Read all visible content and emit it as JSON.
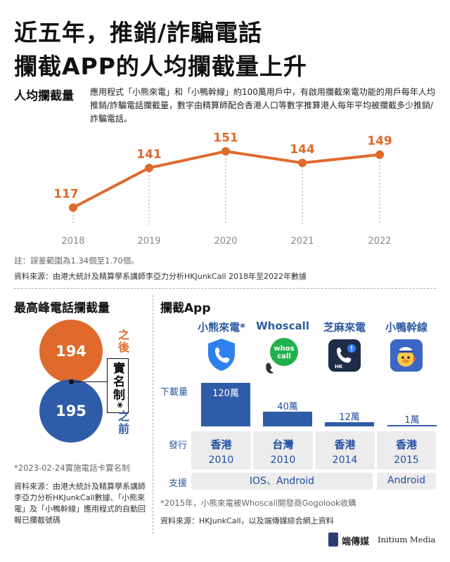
{
  "title": {
    "line1": "近五年，推銷/詐騙電話",
    "line2": "攔截APP的人均攔截量上升"
  },
  "per_capita": {
    "section_title": "人均攔截量",
    "description": "應用程式「小熊來電」和「小鴨幹線」約100萬用戶中，有啟用攔截來電功能的用戶每年人均推銷/詐騙電話攔截量，數字由精算師配合香港人口等數字推算港人每年平均被攔截多少推銷/詐騙電話。",
    "note": "註：誤差範圍為1.34個至1.70個。",
    "source": "資料來源：由港大統計及精算學系講師李亞力分析HKJunkCall 2018年至2022年數據"
  },
  "chart_data": {
    "type": "line",
    "x": [
      "2018",
      "2019",
      "2020",
      "2021",
      "2022"
    ],
    "values": [
      117,
      141,
      151,
      144,
      149
    ],
    "title": "人均攔截量",
    "color": "#e06a2c"
  },
  "peak": {
    "section_title": "最高峰電話攔截量",
    "after_value": "194",
    "after_label": "之後",
    "before_value": "195",
    "before_label": "之前",
    "middle_label": "實名制*",
    "after_color": "#e06a2c",
    "before_color": "#2f5ca8",
    "footnote": "*2023-02-24實施電話卡實名制",
    "source": "資料來源：由港大統計及精算學系講師李亞力分析HKJunkCall數據、「小熊來電」及「小鴨幹線」應用程式的自動回報已攔截號碼"
  },
  "apps": {
    "section_title": "攔截App",
    "row_download": "下載量",
    "row_publish": "發行",
    "row_support": "支援",
    "items": [
      {
        "name": "小熊來電*",
        "icon": "shield-phone-icon",
        "downloads_label": "120萬",
        "downloads": 120,
        "place": "香港",
        "year": "2010"
      },
      {
        "name": "Whoscall",
        "icon": "whoscall-bubble-icon",
        "downloads_label": "40萬",
        "downloads": 40,
        "place": "台灣",
        "year": "2010"
      },
      {
        "name": "芝麻來電",
        "icon": "phone-alert-icon",
        "downloads_label": "12萬",
        "downloads": 12,
        "place": "香港",
        "year": "2014"
      },
      {
        "name": "小鴨幹線",
        "icon": "duck-icon",
        "downloads_label": "1萬",
        "downloads": 1,
        "place": "香港",
        "year": "2015"
      }
    ],
    "support_ios_android": "IOS、Android",
    "support_android": "Android",
    "footnote": "*2015年，小熊來電被Whoscall開發商Gogolook收購",
    "source": "資料來源：HKJunkCall，以及端傳媒綜合網上資料"
  },
  "brand": {
    "name": "端傳媒",
    "name_en": "Initium Media"
  }
}
